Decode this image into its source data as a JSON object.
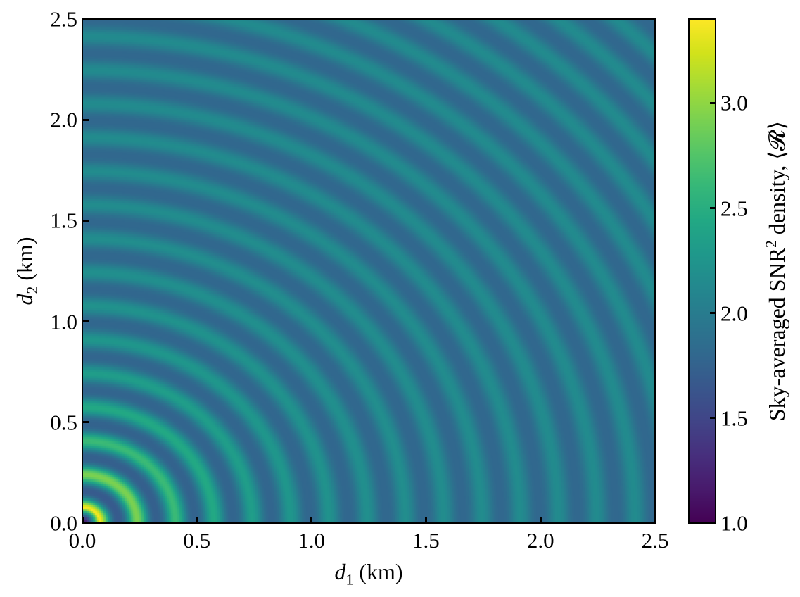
{
  "chart_data": {
    "type": "heatmap",
    "title": "",
    "xlabel": {
      "var": "d",
      "sub": "1",
      "unit": " (km)"
    },
    "ylabel": {
      "var": "d",
      "sub": "2",
      "unit": " (km)"
    },
    "xlim": [
      0.0,
      2.5
    ],
    "ylim": [
      0.0,
      2.5
    ],
    "xticks": [
      "0.0",
      "0.5",
      "1.0",
      "1.5",
      "2.0",
      "2.5"
    ],
    "yticks": [
      "0.0",
      "0.5",
      "1.0",
      "1.5",
      "2.0",
      "2.5"
    ],
    "xtick_values": [
      0.0,
      0.5,
      1.0,
      1.5,
      2.0,
      2.5
    ],
    "ytick_values": [
      0.0,
      0.5,
      1.0,
      1.5,
      2.0,
      2.5
    ],
    "colormap": "viridis",
    "colorbar": {
      "label_prefix": "Sky-averaged SNR",
      "label_sup": "2",
      "label_suffix": " density, ⟨𝓡⟩",
      "vmin": 1.0,
      "vmax": 3.4,
      "ticks": [
        "1.0",
        "1.5",
        "2.0",
        "2.5",
        "3.0"
      ],
      "tick_values": [
        1.0,
        1.5,
        2.0,
        2.5,
        3.0
      ]
    },
    "pattern": {
      "description": "Concentric rings centered at origin (d1=0, d2=0); value depends on radius r = sqrt(d1^2 + d2^2)",
      "baseline": 1.95,
      "ring_period_km": 0.167,
      "first_peak_km": 0.075,
      "center_value": 1.0,
      "first_ring_value": 3.4,
      "second_ring_value": 2.85,
      "far_field_peak_value": 2.15,
      "far_field_trough_value": 1.8,
      "approx_ring_count": 15
    },
    "grid": false,
    "legend": null
  }
}
